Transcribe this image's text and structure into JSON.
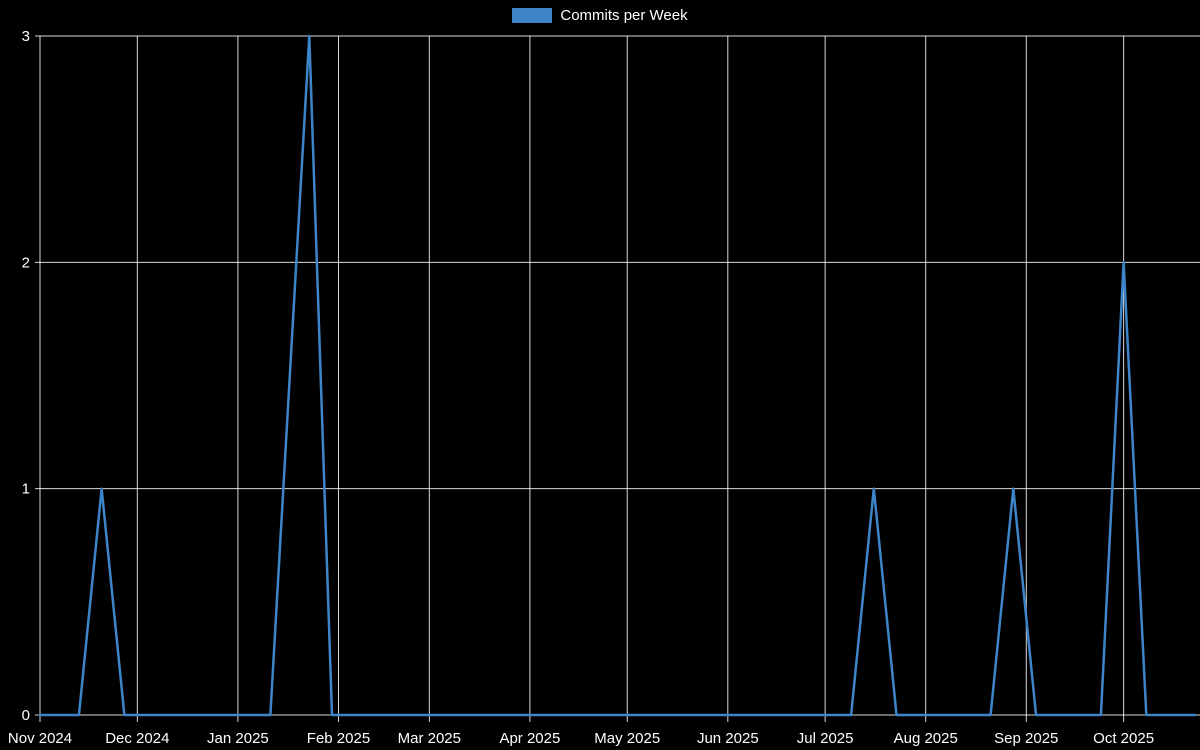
{
  "legend": {
    "label": "Commits per Week",
    "swatch_color": "#3d85c8"
  },
  "chart_data": {
    "type": "line",
    "title": "Commits per Week",
    "legend_position": "top-center",
    "background": "#000000",
    "grid": true,
    "grid_color": "rgba(255,255,255,0.85)",
    "text_color": "#ffffff",
    "x_axis": {
      "label": "",
      "unit": "days",
      "epoch": "2024-11-01",
      "range": [
        0,
        356
      ],
      "ticks": [
        {
          "label": "Nov 2024",
          "day": 0
        },
        {
          "label": "Dec 2024",
          "day": 30
        },
        {
          "label": "Jan 2025",
          "day": 61
        },
        {
          "label": "Feb 2025",
          "day": 92
        },
        {
          "label": "Mar 2025",
          "day": 120
        },
        {
          "label": "Apr 2025",
          "day": 151
        },
        {
          "label": "May 2025",
          "day": 181
        },
        {
          "label": "Jun 2025",
          "day": 212
        },
        {
          "label": "Jul 2025",
          "day": 242
        },
        {
          "label": "Aug 2025",
          "day": 273
        },
        {
          "label": "Sep 2025",
          "day": 304
        },
        {
          "label": "Oct 2025",
          "day": 334
        }
      ]
    },
    "y_axis": {
      "label": "",
      "range": [
        0,
        3
      ],
      "ticks": [
        0,
        1,
        2,
        3
      ]
    },
    "series": [
      {
        "name": "Commits per Week",
        "color": "#3d85c8",
        "line_width": 2.5,
        "points": [
          {
            "date": "2024-11-01",
            "day": 0,
            "value": 0
          },
          {
            "date": "2024-11-13",
            "day": 12,
            "value": 0
          },
          {
            "date": "2024-11-20",
            "day": 19,
            "value": 1
          },
          {
            "date": "2024-11-27",
            "day": 26,
            "value": 0
          },
          {
            "date": "2025-01-11",
            "day": 71,
            "value": 0
          },
          {
            "date": "2025-01-23",
            "day": 83,
            "value": 3
          },
          {
            "date": "2025-01-30",
            "day": 90,
            "value": 0
          },
          {
            "date": "2025-07-09",
            "day": 250,
            "value": 0
          },
          {
            "date": "2025-07-16",
            "day": 257,
            "value": 1
          },
          {
            "date": "2025-07-23",
            "day": 264,
            "value": 0
          },
          {
            "date": "2025-08-21",
            "day": 293,
            "value": 0
          },
          {
            "date": "2025-08-28",
            "day": 300,
            "value": 1
          },
          {
            "date": "2025-09-04",
            "day": 307,
            "value": 0
          },
          {
            "date": "2025-09-24",
            "day": 327,
            "value": 0
          },
          {
            "date": "2025-10-01",
            "day": 334,
            "value": 2
          },
          {
            "date": "2025-10-08",
            "day": 341,
            "value": 0
          },
          {
            "date": "2025-10-23",
            "day": 356,
            "value": 0
          }
        ]
      }
    ]
  }
}
